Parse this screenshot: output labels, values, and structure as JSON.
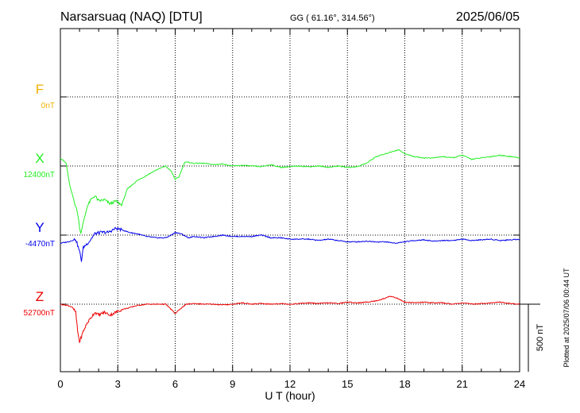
{
  "header": {
    "station": "Narsarsuaq (NAQ)  [DTU]",
    "coords": "GG ( 61.16°, 314.56°)",
    "date": "2025/06/05"
  },
  "footer": {
    "plotted": "Plotted at 2025/07/06 00:44 UT"
  },
  "scale_bar": {
    "label": "500 nT",
    "value_nT": 500
  },
  "colors": {
    "F": "#f0b000",
    "X": "#22ee22",
    "Y": "#0000ee",
    "Z": "#ee0000"
  },
  "chart_data": {
    "type": "line",
    "title": "Narsarsuaq (NAQ)  [DTU]",
    "xlabel": "U T (hour)",
    "xlim": [
      0,
      24
    ],
    "xticks": [
      "0",
      "3",
      "6",
      "9",
      "12",
      "15",
      "18",
      "21",
      "24"
    ],
    "grid": true,
    "series": [
      {
        "name": "F",
        "baseline_label": "0nT",
        "baseline": 0,
        "points": []
      },
      {
        "name": "X",
        "baseline_label": "12400nT",
        "baseline": 12400,
        "points": [
          [
            0,
            12460
          ],
          [
            0.3,
            12420
          ],
          [
            0.5,
            12250
          ],
          [
            0.7,
            12150
          ],
          [
            0.9,
            12050
          ],
          [
            1.05,
            11900
          ],
          [
            1.2,
            11980
          ],
          [
            1.4,
            12100
          ],
          [
            1.6,
            12150
          ],
          [
            1.8,
            12180
          ],
          [
            2.0,
            12140
          ],
          [
            2.3,
            12150
          ],
          [
            2.6,
            12120
          ],
          [
            2.9,
            12140
          ],
          [
            3.2,
            12110
          ],
          [
            3.5,
            12230
          ],
          [
            4.0,
            12290
          ],
          [
            4.5,
            12330
          ],
          [
            5.0,
            12370
          ],
          [
            5.5,
            12400
          ],
          [
            5.8,
            12360
          ],
          [
            6.0,
            12300
          ],
          [
            6.2,
            12320
          ],
          [
            6.5,
            12430
          ],
          [
            7.0,
            12420
          ],
          [
            7.5,
            12420
          ],
          [
            8.0,
            12410
          ],
          [
            8.5,
            12415
          ],
          [
            9.0,
            12400
          ],
          [
            9.5,
            12405
          ],
          [
            10.0,
            12400
          ],
          [
            10.5,
            12395
          ],
          [
            11.0,
            12410
          ],
          [
            11.5,
            12390
          ],
          [
            12.0,
            12395
          ],
          [
            12.5,
            12400
          ],
          [
            13.0,
            12395
          ],
          [
            13.5,
            12400
          ],
          [
            14.0,
            12390
          ],
          [
            14.5,
            12400
          ],
          [
            15.0,
            12390
          ],
          [
            15.5,
            12395
          ],
          [
            16.0,
            12420
          ],
          [
            16.5,
            12470
          ],
          [
            17.0,
            12490
          ],
          [
            17.4,
            12510
          ],
          [
            17.7,
            12520
          ],
          [
            18.0,
            12490
          ],
          [
            18.5,
            12470
          ],
          [
            19.0,
            12460
          ],
          [
            19.5,
            12460
          ],
          [
            20.0,
            12470
          ],
          [
            20.5,
            12460
          ],
          [
            21.0,
            12480
          ],
          [
            21.5,
            12450
          ],
          [
            22.0,
            12460
          ],
          [
            22.5,
            12470
          ],
          [
            23.0,
            12480
          ],
          [
            23.5,
            12470
          ],
          [
            24.0,
            12460
          ]
        ]
      },
      {
        "name": "Y",
        "baseline_label": "-4470nT",
        "baseline": -4470,
        "points": [
          [
            0,
            -4530
          ],
          [
            0.4,
            -4520
          ],
          [
            0.6,
            -4510
          ],
          [
            0.8,
            -4500
          ],
          [
            1.0,
            -4590
          ],
          [
            1.1,
            -4660
          ],
          [
            1.2,
            -4560
          ],
          [
            1.5,
            -4520
          ],
          [
            1.8,
            -4460
          ],
          [
            2.1,
            -4450
          ],
          [
            2.5,
            -4450
          ],
          [
            2.9,
            -4420
          ],
          [
            3.2,
            -4430
          ],
          [
            3.6,
            -4450
          ],
          [
            4.0,
            -4460
          ],
          [
            4.5,
            -4480
          ],
          [
            5.0,
            -4490
          ],
          [
            5.5,
            -4490
          ],
          [
            5.8,
            -4470
          ],
          [
            6.0,
            -4450
          ],
          [
            6.3,
            -4460
          ],
          [
            6.7,
            -4490
          ],
          [
            7.0,
            -4480
          ],
          [
            7.5,
            -4490
          ],
          [
            8.0,
            -4480
          ],
          [
            8.5,
            -4470
          ],
          [
            9.0,
            -4480
          ],
          [
            9.5,
            -4480
          ],
          [
            10.0,
            -4480
          ],
          [
            10.5,
            -4470
          ],
          [
            11.0,
            -4490
          ],
          [
            11.5,
            -4490
          ],
          [
            12.0,
            -4500
          ],
          [
            12.5,
            -4500
          ],
          [
            13.0,
            -4500
          ],
          [
            13.5,
            -4510
          ],
          [
            14.0,
            -4500
          ],
          [
            14.5,
            -4510
          ],
          [
            15.0,
            -4520
          ],
          [
            15.5,
            -4520
          ],
          [
            16.0,
            -4515
          ],
          [
            16.5,
            -4520
          ],
          [
            17.0,
            -4520
          ],
          [
            17.5,
            -4530
          ],
          [
            18.0,
            -4520
          ],
          [
            18.5,
            -4510
          ],
          [
            19.0,
            -4505
          ],
          [
            19.5,
            -4515
          ],
          [
            20.0,
            -4510
          ],
          [
            20.5,
            -4510
          ],
          [
            21.0,
            -4500
          ],
          [
            21.5,
            -4510
          ],
          [
            22.0,
            -4505
          ],
          [
            22.5,
            -4500
          ],
          [
            23.0,
            -4510
          ],
          [
            23.5,
            -4505
          ],
          [
            24.0,
            -4500
          ]
        ]
      },
      {
        "name": "Z",
        "baseline_label": "52700nT",
        "baseline": 52700,
        "points": [
          [
            0,
            52700
          ],
          [
            0.4,
            52690
          ],
          [
            0.6,
            52680
          ],
          [
            0.8,
            52640
          ],
          [
            0.9,
            52500
          ],
          [
            1.0,
            52420
          ],
          [
            1.1,
            52460
          ],
          [
            1.2,
            52500
          ],
          [
            1.4,
            52560
          ],
          [
            1.6,
            52600
          ],
          [
            1.8,
            52640
          ],
          [
            2.0,
            52620
          ],
          [
            2.3,
            52640
          ],
          [
            2.6,
            52620
          ],
          [
            2.9,
            52640
          ],
          [
            3.2,
            52660
          ],
          [
            3.5,
            52670
          ],
          [
            4.0,
            52690
          ],
          [
            4.5,
            52700
          ],
          [
            5.0,
            52700
          ],
          [
            5.5,
            52700
          ],
          [
            5.8,
            52660
          ],
          [
            6.0,
            52630
          ],
          [
            6.3,
            52670
          ],
          [
            6.6,
            52700
          ],
          [
            7.0,
            52705
          ],
          [
            7.5,
            52700
          ],
          [
            8.0,
            52700
          ],
          [
            8.5,
            52695
          ],
          [
            9.0,
            52700
          ],
          [
            9.5,
            52710
          ],
          [
            10.0,
            52700
          ],
          [
            10.5,
            52705
          ],
          [
            11.0,
            52700
          ],
          [
            11.5,
            52705
          ],
          [
            12.0,
            52700
          ],
          [
            12.5,
            52705
          ],
          [
            13.0,
            52710
          ],
          [
            13.5,
            52705
          ],
          [
            14.0,
            52710
          ],
          [
            14.5,
            52705
          ],
          [
            15.0,
            52715
          ],
          [
            15.5,
            52710
          ],
          [
            16.0,
            52715
          ],
          [
            16.5,
            52725
          ],
          [
            17.0,
            52745
          ],
          [
            17.2,
            52760
          ],
          [
            17.5,
            52750
          ],
          [
            17.8,
            52730
          ],
          [
            18.0,
            52715
          ],
          [
            18.5,
            52710
          ],
          [
            19.0,
            52715
          ],
          [
            19.5,
            52710
          ],
          [
            20.0,
            52710
          ],
          [
            20.5,
            52700
          ],
          [
            21.0,
            52710
          ],
          [
            21.5,
            52700
          ],
          [
            22.0,
            52705
          ],
          [
            22.5,
            52710
          ],
          [
            23.0,
            52715
          ],
          [
            23.5,
            52705
          ],
          [
            24.0,
            52700
          ]
        ]
      }
    ]
  }
}
